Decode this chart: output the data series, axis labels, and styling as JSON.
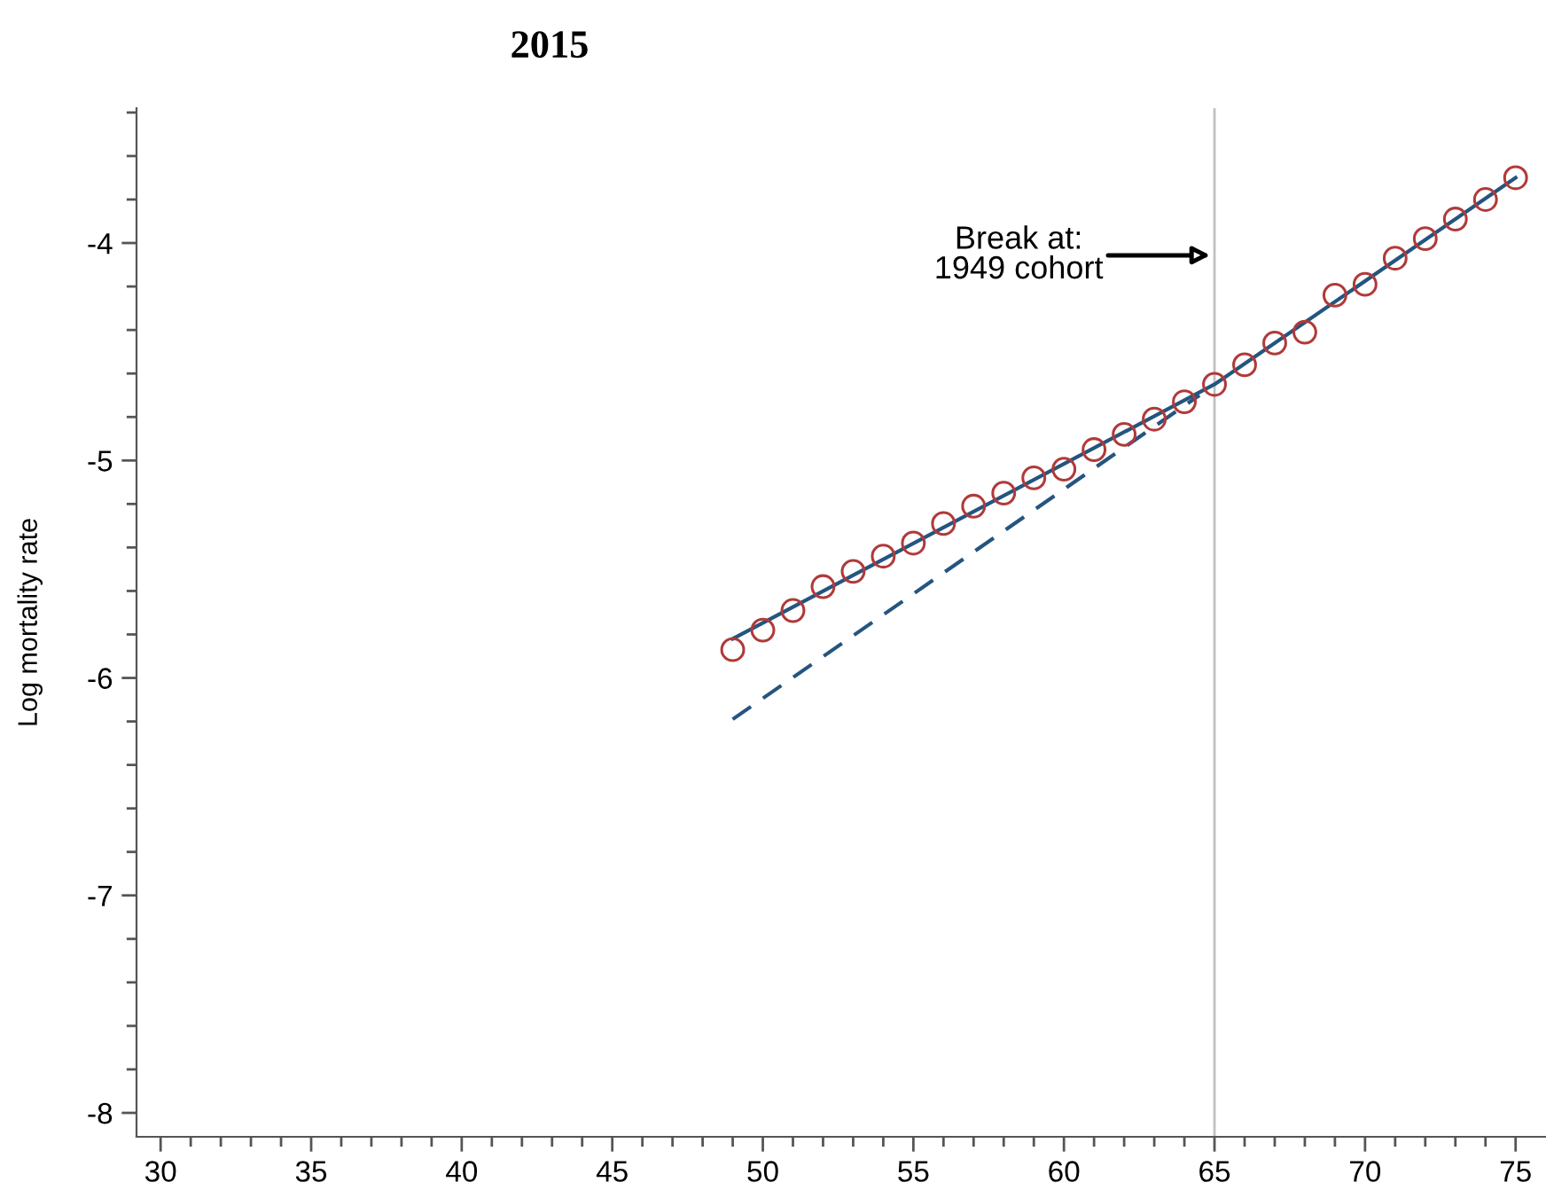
{
  "chart_data": {
    "type": "scatter",
    "title": "2015",
    "ylabel": "Log mortality rate",
    "xlim": [
      29.2,
      76
    ],
    "ylim": [
      -8.11,
      -3.38
    ],
    "xticks": [
      30,
      {
        "value": 31,
        "label": null
      },
      {
        "value": 32,
        "label": null
      },
      {
        "value": 33,
        "label": null
      },
      {
        "value": 34,
        "label": null
      },
      35,
      {
        "value": 36,
        "label": null
      },
      {
        "value": 37,
        "label": null
      },
      {
        "value": 38,
        "label": null
      },
      {
        "value": 39,
        "label": null
      },
      40,
      {
        "value": 41,
        "label": null
      },
      {
        "value": 42,
        "label": null
      },
      {
        "value": 43,
        "label": null
      },
      {
        "value": 44,
        "label": null
      },
      45,
      {
        "value": 46,
        "label": null
      },
      {
        "value": 47,
        "label": null
      },
      {
        "value": 48,
        "label": null
      },
      {
        "value": 49,
        "label": null
      },
      50,
      {
        "value": 51,
        "label": null
      },
      {
        "value": 52,
        "label": null
      },
      {
        "value": 53,
        "label": null
      },
      {
        "value": 54,
        "label": null
      },
      55,
      {
        "value": 56,
        "label": null
      },
      {
        "value": 57,
        "label": null
      },
      {
        "value": 58,
        "label": null
      },
      {
        "value": 59,
        "label": null
      },
      60,
      {
        "value": 61,
        "label": null
      },
      {
        "value": 62,
        "label": null
      },
      {
        "value": 63,
        "label": null
      },
      {
        "value": 64,
        "label": null
      },
      65,
      {
        "value": 66,
        "label": null
      },
      {
        "value": 67,
        "label": null
      },
      {
        "value": 68,
        "label": null
      },
      {
        "value": 69,
        "label": null
      },
      70,
      {
        "value": 71,
        "label": null
      },
      {
        "value": 72,
        "label": null
      },
      {
        "value": 73,
        "label": null
      },
      {
        "value": 74,
        "label": null
      },
      75
    ],
    "yticks": [
      {
        "value": -8,
        "label": "-8"
      },
      {
        "value": -7.8,
        "label": null
      },
      {
        "value": -7.6,
        "label": null
      },
      {
        "value": -7.4,
        "label": null
      },
      {
        "value": -7.2,
        "label": null
      },
      {
        "value": -7,
        "label": "-7"
      },
      {
        "value": -6.8,
        "label": null
      },
      {
        "value": -6.6,
        "label": null
      },
      {
        "value": -6.4,
        "label": null
      },
      {
        "value": -6.2,
        "label": null
      },
      {
        "value": -6,
        "label": "-6"
      },
      {
        "value": -5.8,
        "label": null
      },
      {
        "value": -5.6,
        "label": null
      },
      {
        "value": -5.4,
        "label": null
      },
      {
        "value": -5.2,
        "label": null
      },
      {
        "value": -5,
        "label": "-5"
      },
      {
        "value": -4.8,
        "label": null
      },
      {
        "value": -4.6,
        "label": null
      },
      {
        "value": -4.4,
        "label": null
      },
      {
        "value": -4.2,
        "label": null
      },
      {
        "value": -4,
        "label": "-4"
      },
      {
        "value": -3.8,
        "label": null
      },
      {
        "value": -3.6,
        "label": null
      },
      {
        "value": -3.4,
        "label": null
      }
    ],
    "grid": false,
    "legend": false,
    "series": [
      {
        "marker": "circle",
        "color": "#b03a3a",
        "x": [
          49,
          50,
          51,
          52,
          53,
          54,
          55,
          56,
          57,
          58,
          59,
          60,
          61,
          62,
          63,
          64,
          65,
          66,
          67,
          68,
          69,
          70,
          71,
          72,
          73,
          74,
          75
        ],
        "values": [
          -5.87,
          -5.78,
          -5.69,
          -5.58,
          -5.51,
          -5.44,
          -5.38,
          -5.29,
          -5.21,
          -5.15,
          -5.08,
          -5.04,
          -4.95,
          -4.88,
          -4.81,
          -4.73,
          -4.65,
          -4.56,
          -4.46,
          -4.41,
          -4.24,
          -4.19,
          -4.07,
          -3.98,
          -3.89,
          -3.8,
          -3.7
        ]
      },
      {
        "type": "line",
        "line_style": "solid",
        "color": "#24557f",
        "x": [
          49,
          65,
          75
        ],
        "values": [
          -5.82,
          -4.65,
          -3.7
        ]
      },
      {
        "type": "line",
        "line_style": "dashed",
        "color": "#24557f",
        "x": [
          49,
          64.5
        ],
        "values": [
          -6.19,
          -4.7
        ]
      }
    ],
    "ref_lines": [
      {
        "axis": "x",
        "value": 65,
        "color": "#c0c0c0"
      }
    ],
    "annotations": [
      "Break at:\n1949 cohort"
    ]
  }
}
